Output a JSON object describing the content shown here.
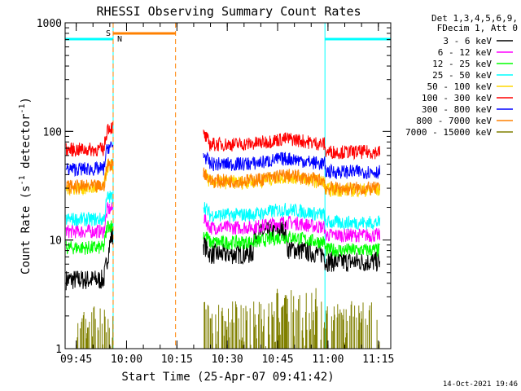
{
  "chart_data": {
    "type": "line",
    "title": "RHESSI Observing Summary Count Rates",
    "xlabel": "Start Time (25-Apr-07 09:41:42)",
    "ylabel_main": "Count Rate (s",
    "ylabel_sup1": "-1",
    "ylabel_mid": " detector",
    "ylabel_sup2": "-1",
    "ylabel_end": ")",
    "y_scale": "log",
    "ylim": [
      1,
      1000
    ],
    "xlim_minutes": [
      0,
      97
    ],
    "x_ticks": [
      {
        "label": "09:45",
        "min": 3.3
      },
      {
        "label": "10:00",
        "min": 18.3
      },
      {
        "label": "10:15",
        "min": 33.3
      },
      {
        "label": "10:30",
        "min": 48.3
      },
      {
        "label": "10:45",
        "min": 63.3
      },
      {
        "label": "11:00",
        "min": 78.3
      },
      {
        "label": "11:15",
        "min": 93.3
      }
    ],
    "y_ticks": [
      {
        "label": "1",
        "value": 1
      },
      {
        "label": "10",
        "value": 10
      },
      {
        "label": "100",
        "value": 100
      },
      {
        "label": "1000",
        "value": 1000
      }
    ],
    "legend_header": [
      "Det 1,3,4,5,6,9,",
      "FDecim 1, Att 0"
    ],
    "series": [
      {
        "name": "3 - 6 keV",
        "color": "#000000",
        "pre": 4.3,
        "post": 7.4
      },
      {
        "name": "6 - 12 keV",
        "color": "#ff00ff",
        "pre": 12.0,
        "post": 13.0
      },
      {
        "name": "12 - 25 keV",
        "color": "#00ff00",
        "pre": 8.5,
        "post": 9.5
      },
      {
        "name": "25 - 50 keV",
        "color": "#00ffff",
        "pre": 15.5,
        "post": 17.0
      },
      {
        "name": "50 - 100 keV",
        "color": "#ffd700",
        "pre": 30.0,
        "post": 34.0
      },
      {
        "name": "100 - 300 keV",
        "color": "#ff0000",
        "pre": 68.0,
        "post": 76.0
      },
      {
        "name": "300 - 800 keV",
        "color": "#0000ff",
        "pre": 45.0,
        "post": 50.0
      },
      {
        "name": "800 - 7000 keV",
        "color": "#ff8000",
        "pre": 31.0,
        "post": 35.0
      },
      {
        "name": "7000 - 15000 keV",
        "color": "#808000",
        "pre": 1.5,
        "post": 1.6
      }
    ],
    "night_intervals": [
      [
        0,
        14.3
      ],
      [
        77.4,
        97
      ]
    ],
    "saa_interval": [
      14.3,
      32.9
    ],
    "flag_labels": [
      {
        "text": "S",
        "color": "#ff8000"
      },
      {
        "text": "N",
        "color": "#00ffff"
      }
    ],
    "data_gap": [
      32.9,
      41.1
    ],
    "footer_date": "14-Oct-2021 19:46"
  }
}
